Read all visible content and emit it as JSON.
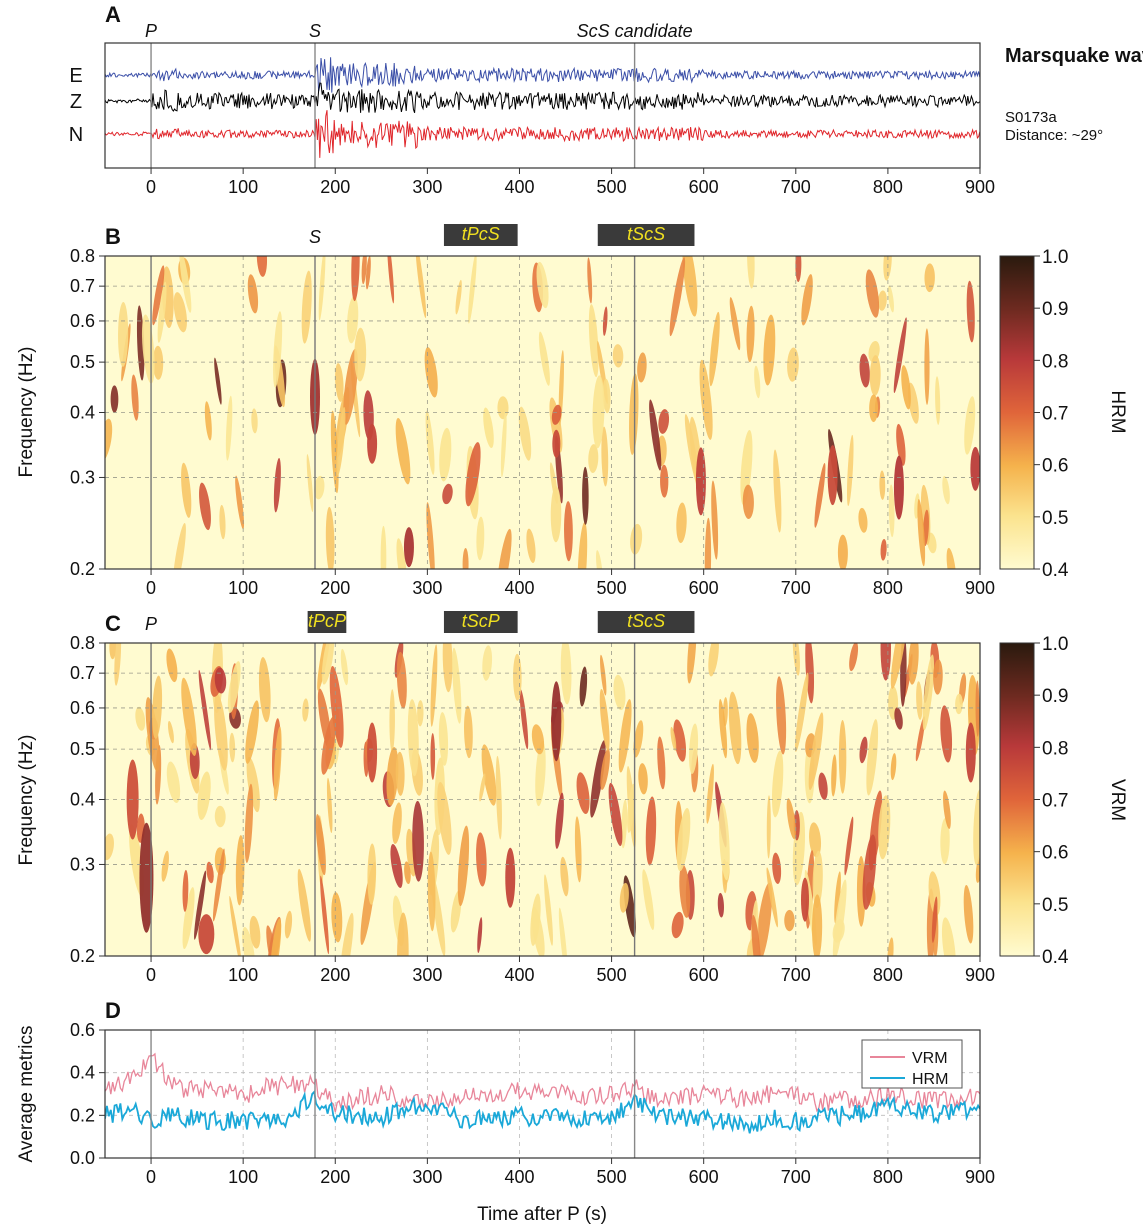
{
  "chart_data": [
    {
      "panel": "A",
      "type": "line",
      "title": "Marsquake waveforms:",
      "event": "S0173a",
      "distance": "Distance: ~29°",
      "channels": [
        {
          "name": "E",
          "color": "#3b4fa8"
        },
        {
          "name": "Z",
          "color": "#000000"
        },
        {
          "name": "N",
          "color": "#e0262b"
        }
      ],
      "xlim": [
        -50,
        900
      ],
      "xticks": [
        0,
        100,
        200,
        300,
        400,
        500,
        600,
        700,
        800,
        900
      ],
      "markers": [
        {
          "label": "P",
          "x": 0
        },
        {
          "label": "S",
          "x": 178
        },
        {
          "label": "ScS candidate",
          "x": 525
        }
      ]
    },
    {
      "panel": "B",
      "type": "heatmap",
      "ylabel": "Frequency (Hz)",
      "colorbar_label": "HRM",
      "xlim": [
        -50,
        900
      ],
      "ylim": [
        0.2,
        0.8
      ],
      "yscale": "log",
      "xticks": [
        0,
        100,
        200,
        300,
        400,
        500,
        600,
        700,
        800,
        900
      ],
      "yticks": [
        0.2,
        0.3,
        0.4,
        0.5,
        0.6,
        0.7,
        0.8
      ],
      "ytick_labels": [
        "0.2",
        "0.3",
        "0.4",
        "0.5",
        "0.6",
        "0.7",
        "0.8"
      ],
      "clim": [
        0.4,
        1.0
      ],
      "cticks": [
        "0.4",
        "0.5",
        "0.6",
        "0.7",
        "0.8",
        "0.9",
        "1.0"
      ],
      "markers": [
        {
          "label": "S",
          "x": 178
        }
      ],
      "windows": [
        {
          "label": "tPcS",
          "x0": 318,
          "x1": 398
        },
        {
          "label": "tScS",
          "x0": 485,
          "x1": 590
        }
      ],
      "vlines": [
        0,
        178,
        525
      ]
    },
    {
      "panel": "C",
      "type": "heatmap",
      "ylabel": "Frequency (Hz)",
      "colorbar_label": "VRM",
      "xlim": [
        -50,
        900
      ],
      "ylim": [
        0.2,
        0.8
      ],
      "yscale": "log",
      "xticks": [
        0,
        100,
        200,
        300,
        400,
        500,
        600,
        700,
        800,
        900
      ],
      "yticks": [
        0.2,
        0.3,
        0.4,
        0.5,
        0.6,
        0.7,
        0.8
      ],
      "ytick_labels": [
        "0.2",
        "0.3",
        "0.4",
        "0.5",
        "0.6",
        "0.7",
        "0.8"
      ],
      "clim": [
        0.4,
        1.0
      ],
      "cticks": [
        "0.4",
        "0.5",
        "0.6",
        "0.7",
        "0.8",
        "0.9",
        "1.0"
      ],
      "markers": [
        {
          "label": "P",
          "x": 0
        }
      ],
      "windows": [
        {
          "label": "tPcP",
          "x0": 170,
          "x1": 212
        },
        {
          "label": "tScP",
          "x0": 318,
          "x1": 398
        },
        {
          "label": "tScS",
          "x0": 485,
          "x1": 590
        }
      ],
      "vlines": [
        0,
        178,
        525
      ]
    },
    {
      "panel": "D",
      "type": "line",
      "xlabel": "Time after P (s)",
      "ylabel": "Average metrics",
      "xlim": [
        -50,
        900
      ],
      "ylim": [
        0.0,
        0.6
      ],
      "xticks": [
        0,
        100,
        200,
        300,
        400,
        500,
        600,
        700,
        800,
        900
      ],
      "yticks": [
        0.0,
        0.2,
        0.4,
        0.6
      ],
      "ytick_labels": [
        "0.0",
        "0.2",
        "0.4",
        "0.6"
      ],
      "legend": "top-right",
      "vlines": [
        0,
        178,
        525
      ],
      "series": [
        {
          "name": "VRM",
          "color": "#e8869a",
          "x": [
            -50,
            -25,
            0,
            25,
            50,
            75,
            100,
            125,
            150,
            175,
            200,
            225,
            250,
            275,
            300,
            325,
            350,
            375,
            400,
            425,
            450,
            475,
            500,
            525,
            550,
            575,
            600,
            625,
            650,
            675,
            700,
            725,
            750,
            775,
            800,
            825,
            850,
            875,
            900
          ],
          "values": [
            0.33,
            0.36,
            0.48,
            0.34,
            0.31,
            0.33,
            0.28,
            0.33,
            0.34,
            0.34,
            0.26,
            0.28,
            0.3,
            0.28,
            0.25,
            0.28,
            0.3,
            0.28,
            0.32,
            0.3,
            0.31,
            0.29,
            0.3,
            0.33,
            0.28,
            0.28,
            0.3,
            0.29,
            0.27,
            0.31,
            0.3,
            0.26,
            0.27,
            0.28,
            0.3,
            0.28,
            0.27,
            0.28,
            0.3
          ]
        },
        {
          "name": "HRM",
          "color": "#1aa8d8",
          "x": [
            -50,
            -25,
            0,
            25,
            50,
            75,
            100,
            125,
            150,
            175,
            200,
            225,
            250,
            275,
            300,
            325,
            350,
            375,
            400,
            425,
            450,
            475,
            500,
            525,
            550,
            575,
            600,
            625,
            650,
            675,
            700,
            725,
            750,
            775,
            800,
            825,
            850,
            875,
            900
          ],
          "values": [
            0.2,
            0.23,
            0.18,
            0.2,
            0.18,
            0.17,
            0.18,
            0.17,
            0.19,
            0.3,
            0.21,
            0.2,
            0.19,
            0.22,
            0.26,
            0.19,
            0.18,
            0.19,
            0.2,
            0.19,
            0.2,
            0.18,
            0.18,
            0.28,
            0.2,
            0.19,
            0.19,
            0.17,
            0.15,
            0.19,
            0.17,
            0.19,
            0.2,
            0.21,
            0.27,
            0.22,
            0.21,
            0.22,
            0.23
          ]
        }
      ]
    }
  ]
}
